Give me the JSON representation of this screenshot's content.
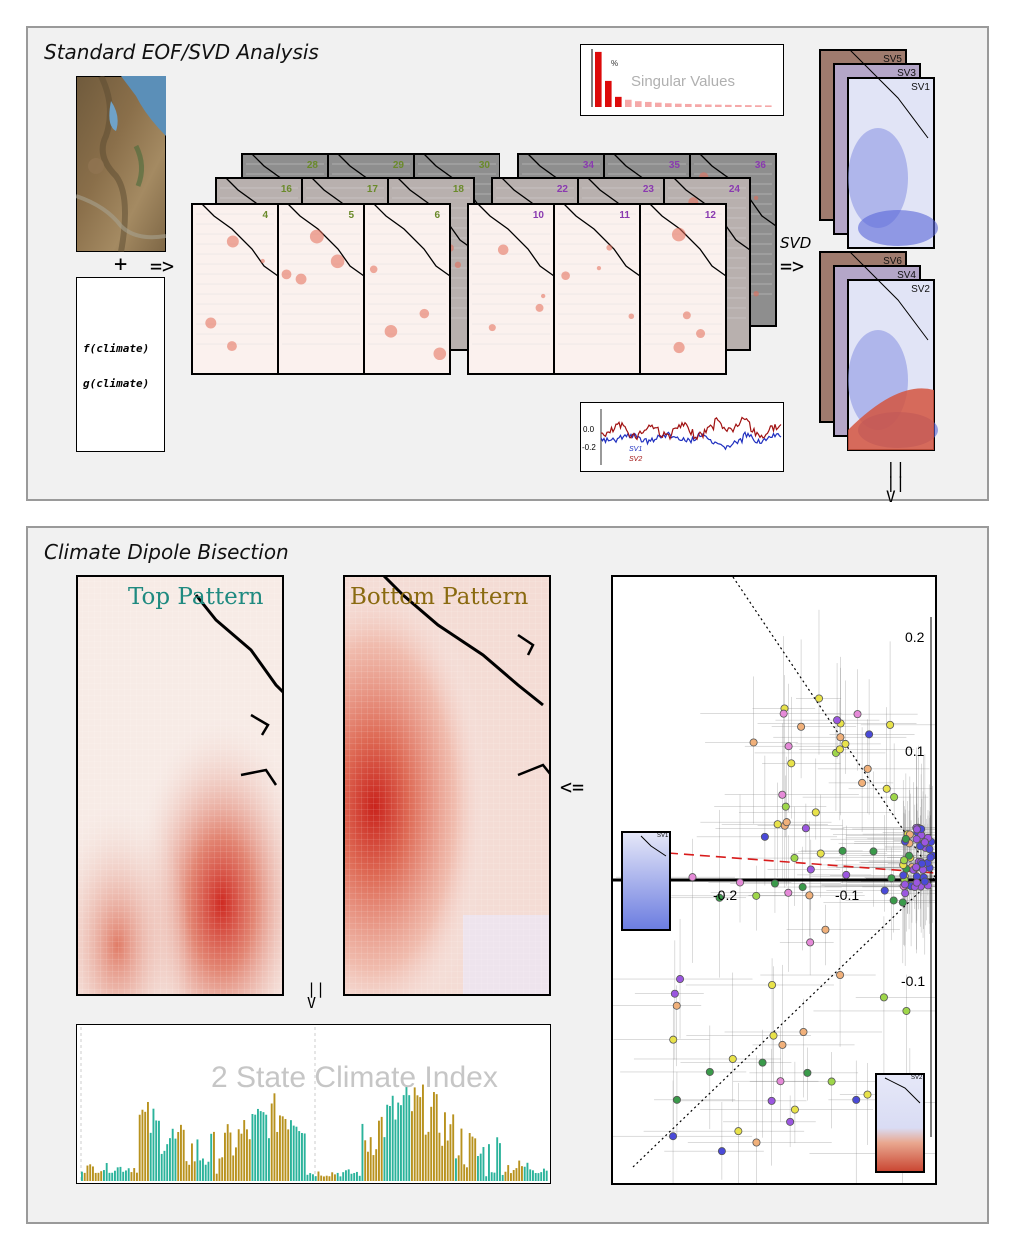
{
  "top_panel": {
    "title": "Standard EOF/SVD Analysis",
    "plus": "+",
    "arrow_right": "=>",
    "functions": [
      "f(climate)",
      "g(climate)"
    ],
    "map_numbers_front_a": [
      "4",
      "5",
      "6"
    ],
    "map_numbers_mid_a": [
      "16",
      "17",
      "18"
    ],
    "map_numbers_back_a": [
      "28",
      "29",
      "30"
    ],
    "map_numbers_front_b": [
      "10",
      "11",
      "12"
    ],
    "map_numbers_mid_b": [
      "22",
      "23",
      "24"
    ],
    "map_numbers_back_b": [
      "34",
      "35",
      "36"
    ],
    "svd_label": "SVD",
    "svd_arrow": "=>",
    "singular_values_title": "Singular Values",
    "singular_values_unit": "%",
    "singular_values": [
      38,
      18,
      7,
      5,
      4,
      3.5,
      3,
      2.6,
      2.3,
      2.1,
      1.9,
      1.7,
      1.6,
      1.5,
      1.4,
      1.3,
      1.2,
      1.1
    ],
    "sv_stack_top": [
      "SV5",
      "SV3",
      "SV1"
    ],
    "sv_stack_bottom": [
      "SV6",
      "SV4",
      "SV2"
    ],
    "ts_ticks": [
      "0.0",
      "-0.2"
    ],
    "ts_legend": [
      "SV1",
      "SV2"
    ],
    "ts_colors": {
      "sv1": "#1f2fbf",
      "sv2": "#a01010"
    }
  },
  "bottom_panel": {
    "title": "Climate Dipole Bisection",
    "top_pattern_label": "Top Pattern",
    "bottom_pattern_label": "Bottom Pattern",
    "down_arrow": "||\nV",
    "left_arrow": "<=",
    "index_title": "2 State Climate Index",
    "index_colors": {
      "top": "#2bb39b",
      "bottom": "#b8921e"
    },
    "scatter_y_ticks": [
      "0.2",
      "0.1",
      "-0.1"
    ],
    "scatter_x_ticks": [
      "-0.2",
      "-0.1"
    ],
    "scatter_inset_labels": [
      "SV1",
      "SV2"
    ]
  },
  "connector": "||\n||\nV",
  "colors": {
    "red_map": "#d9402f",
    "blue_map": "#4d5fd6",
    "panel_bg": "#f1f1f1",
    "top_label": "#1f8a80",
    "bottom_label": "#8a6a10"
  },
  "chart_data": [
    {
      "type": "bar",
      "title": "Singular Values",
      "ylabel": "%",
      "values": [
        38,
        18,
        7,
        5,
        4,
        3.5,
        3,
        2.6,
        2.3,
        2.1,
        1.9,
        1.7,
        1.6,
        1.5,
        1.4,
        1.3,
        1.2,
        1.1
      ]
    },
    {
      "type": "bar",
      "title": "2 State Climate Index",
      "series": [
        {
          "name": "Top Pattern",
          "values": []
        },
        {
          "name": "Bottom Pattern",
          "values": []
        }
      ]
    }
  ]
}
